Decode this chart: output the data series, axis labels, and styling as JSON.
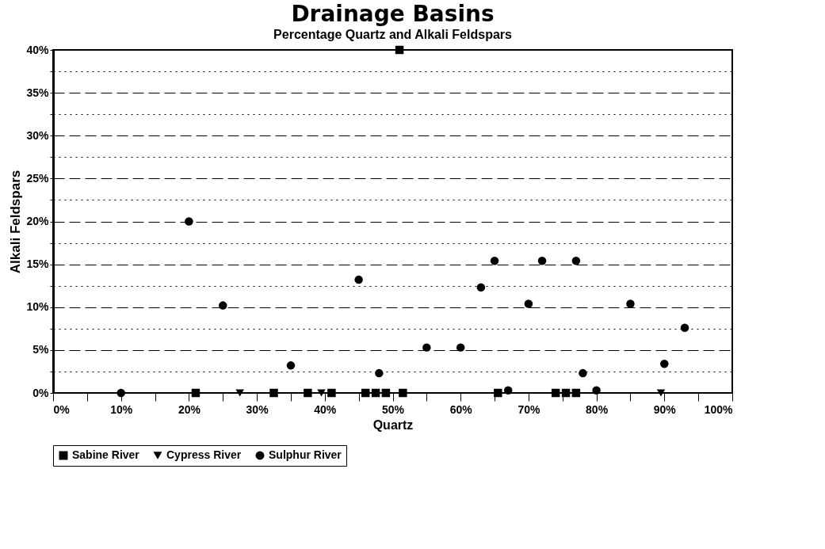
{
  "chart_data": {
    "type": "scatter",
    "title": "Drainage Basins",
    "subtitle": "Percentage Quartz and Alkali Feldspars",
    "xlabel": "Quartz",
    "ylabel": "Alkali Feldspars",
    "xlim": [
      0,
      100
    ],
    "ylim": [
      0,
      40
    ],
    "xticks": [
      {
        "value": 0,
        "label": "0%"
      },
      {
        "value": 5,
        "label": null
      },
      {
        "value": 10,
        "label": "10%"
      },
      {
        "value": 15,
        "label": null
      },
      {
        "value": 20,
        "label": "20%"
      },
      {
        "value": 25,
        "label": null
      },
      {
        "value": 30,
        "label": "30%"
      },
      {
        "value": 35,
        "label": null
      },
      {
        "value": 40,
        "label": "40%"
      },
      {
        "value": 45,
        "label": null
      },
      {
        "value": 50,
        "label": "50%"
      },
      {
        "value": 55,
        "label": null
      },
      {
        "value": 60,
        "label": "60%"
      },
      {
        "value": 65,
        "label": null
      },
      {
        "value": 70,
        "label": "70%"
      },
      {
        "value": 75,
        "label": null
      },
      {
        "value": 80,
        "label": "80%"
      },
      {
        "value": 85,
        "label": null
      },
      {
        "value": 90,
        "label": "90%"
      },
      {
        "value": 95,
        "label": null
      },
      {
        "value": 100,
        "label": "100%"
      }
    ],
    "yticks": [
      {
        "value": 0,
        "label": "0%"
      },
      {
        "value": 2.5,
        "label": null
      },
      {
        "value": 5,
        "label": "5%"
      },
      {
        "value": 7.5,
        "label": null
      },
      {
        "value": 10,
        "label": "10%"
      },
      {
        "value": 12.5,
        "label": null
      },
      {
        "value": 15,
        "label": "15%"
      },
      {
        "value": 17.5,
        "label": null
      },
      {
        "value": 20,
        "label": "20%"
      },
      {
        "value": 22.5,
        "label": null
      },
      {
        "value": 25,
        "label": "25%"
      },
      {
        "value": 27.5,
        "label": null
      },
      {
        "value": 30,
        "label": "30%"
      },
      {
        "value": 32.5,
        "label": null
      },
      {
        "value": 35,
        "label": "35%"
      },
      {
        "value": 37.5,
        "label": null
      },
      {
        "value": 40,
        "label": "40%"
      }
    ],
    "grid": "y",
    "legend": "bottom",
    "series": [
      {
        "name": "Sabine River",
        "color": "#000000",
        "marker": "square",
        "x": [
          21,
          32.5,
          37.5,
          41,
          46,
          47.5,
          49,
          51.5,
          51,
          65.5,
          74,
          75.5,
          77
        ],
        "values": [
          0,
          0,
          0,
          0,
          0,
          0,
          0,
          0,
          40,
          0,
          0,
          0,
          0
        ]
      },
      {
        "name": "Cypress River",
        "color": "#000000",
        "marker": "triangle",
        "x": [
          27.5,
          39.5,
          89.5
        ],
        "values": [
          0,
          0,
          0
        ]
      },
      {
        "name": "Sulphur River",
        "color": "#000000",
        "marker": "circle",
        "x": [
          10,
          20,
          25,
          35,
          45,
          48,
          55,
          60,
          63,
          65,
          67,
          70,
          72,
          77,
          78,
          80,
          85,
          90,
          93
        ],
        "values": [
          0,
          20,
          10.2,
          3.2,
          13.2,
          2.3,
          5.3,
          5.3,
          12.3,
          15.4,
          0.3,
          10.4,
          15.4,
          15.4,
          2.3,
          0.3,
          10.4,
          3.4,
          7.6
        ]
      }
    ]
  }
}
